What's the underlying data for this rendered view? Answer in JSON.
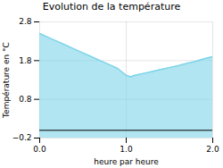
{
  "chart_data": {
    "type": "area",
    "title": "Evolution de la température",
    "xlabel": "heure par heure",
    "ylabel": "Température en °C",
    "x": [
      0,
      0.1,
      0.2,
      0.3,
      0.4,
      0.5,
      0.6,
      0.7,
      0.8,
      0.9,
      1.0,
      1.05,
      1.1,
      1.2,
      1.3,
      1.4,
      1.5,
      1.6,
      1.7,
      1.8,
      1.9,
      2.0
    ],
    "values": [
      2.5,
      2.4,
      2.3,
      2.2,
      2.1,
      2.0,
      1.9,
      1.8,
      1.7,
      1.6,
      1.42,
      1.38,
      1.42,
      1.47,
      1.52,
      1.57,
      1.62,
      1.67,
      1.73,
      1.78,
      1.85,
      1.9
    ],
    "color": "#7dd4e8",
    "xlim": [
      0,
      2
    ],
    "ylim": [
      -0.2,
      2.8
    ],
    "xticks": [
      0,
      1,
      2
    ],
    "yticks": [
      -0.2,
      0.8,
      1.8,
      2.8
    ],
    "grid": true
  }
}
